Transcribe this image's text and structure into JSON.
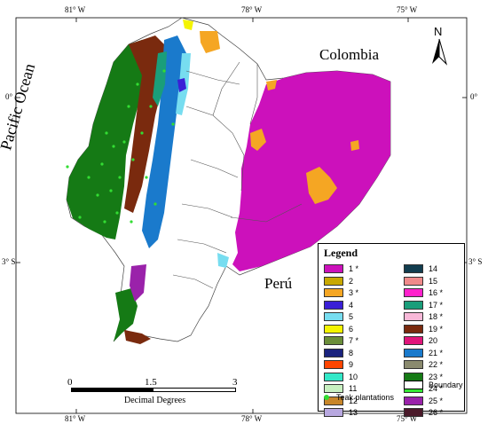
{
  "axes": {
    "top_ticks": [
      "81° W",
      "78° W",
      "75° W"
    ],
    "bottom_ticks": [
      "81° W",
      "78° W",
      "75° W"
    ],
    "left_ticks": [
      "0°",
      "3° S"
    ],
    "right_ticks": [
      "0°",
      "3° S"
    ]
  },
  "places": {
    "ocean": "Pacific Ocean",
    "north_country": "Colombia",
    "south_country": "Perú"
  },
  "north_arrow": {
    "label": "N"
  },
  "scale": {
    "ticks": [
      "0",
      "1.5",
      "3"
    ],
    "units": "Decimal Degrees"
  },
  "legend": {
    "title": "Legend",
    "items": [
      {
        "label": "1",
        "mark": "*",
        "color": "#cc11bb"
      },
      {
        "label": "2",
        "mark": "",
        "color": "#c8a800"
      },
      {
        "label": "3",
        "mark": "*",
        "color": "#f5a623"
      },
      {
        "label": "4",
        "mark": "",
        "color": "#3a1fd6"
      },
      {
        "label": "5",
        "mark": "",
        "color": "#77ddf0"
      },
      {
        "label": "6",
        "mark": "",
        "color": "#f4f400"
      },
      {
        "label": "7",
        "mark": "*",
        "color": "#6b8e3a"
      },
      {
        "label": "8",
        "mark": "",
        "color": "#1a237e"
      },
      {
        "label": "9",
        "mark": "",
        "color": "#ff4500"
      },
      {
        "label": "10",
        "mark": "",
        "color": "#33e8c8"
      },
      {
        "label": "11",
        "mark": "",
        "color": "#c8f0c0"
      },
      {
        "label": "12",
        "mark": "",
        "color": "#c8862a"
      },
      {
        "label": "13",
        "mark": "",
        "color": "#b8a8e0"
      },
      {
        "label": "14",
        "mark": "",
        "color": "#123d4f"
      },
      {
        "label": "15",
        "mark": "",
        "color": "#f08a8a"
      },
      {
        "label": "16",
        "mark": "*",
        "color": "#ff22cc"
      },
      {
        "label": "17",
        "mark": "*",
        "color": "#1a9e7a"
      },
      {
        "label": "18",
        "mark": "*",
        "color": "#f8b8d8"
      },
      {
        "label": "19",
        "mark": "*",
        "color": "#7a2a0e"
      },
      {
        "label": "20",
        "mark": "",
        "color": "#e0157a"
      },
      {
        "label": "21",
        "mark": "*",
        "color": "#1a7acc"
      },
      {
        "label": "22",
        "mark": "*",
        "color": "#8a8a6e"
      },
      {
        "label": "23",
        "mark": "*",
        "color": "#157a15"
      },
      {
        "label": "24",
        "mark": "*",
        "color": "#33e833"
      },
      {
        "label": "25",
        "mark": "*",
        "color": "#9a22aa"
      },
      {
        "label": "26",
        "mark": "*",
        "color": "#4a1a2a"
      }
    ],
    "boundary_label": "Boundary",
    "teak_label": "Teak plantations"
  }
}
